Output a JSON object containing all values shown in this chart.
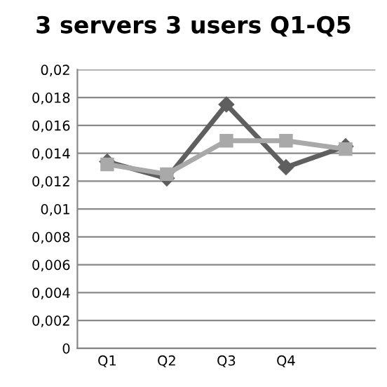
{
  "chart_data": {
    "type": "line",
    "title": "3 servers 3 users Q1-Q5",
    "categories": [
      "Q1",
      "Q2",
      "Q3",
      "Q4",
      null
    ],
    "series": [
      {
        "color": "#5f5f5f",
        "marker": "diamond",
        "values": [
          0.0134,
          0.0122,
          0.0175,
          0.013,
          0.0145
        ]
      },
      {
        "color": "#a9a9a9",
        "marker": "square",
        "values": [
          0.0132,
          0.0125,
          0.0149,
          0.0149,
          0.0143
        ]
      }
    ],
    "ylim": [
      0,
      0.02
    ],
    "yticks": [
      {
        "value": 0,
        "label": "0"
      },
      {
        "value": 0.002,
        "label": "0,002"
      },
      {
        "value": 0.004,
        "label": "0,004"
      },
      {
        "value": 0.006,
        "label": "0,006"
      },
      {
        "value": 0.008,
        "label": "0,008"
      },
      {
        "value": 0.01,
        "label": "0,01"
      },
      {
        "value": 0.012,
        "label": "0,012"
      },
      {
        "value": 0.014,
        "label": "0,014"
      },
      {
        "value": 0.016,
        "label": "0,016"
      },
      {
        "value": 0.018,
        "label": "0,018"
      },
      {
        "value": 0.02,
        "label": "0,02"
      }
    ],
    "grid": "y",
    "legend": false
  }
}
